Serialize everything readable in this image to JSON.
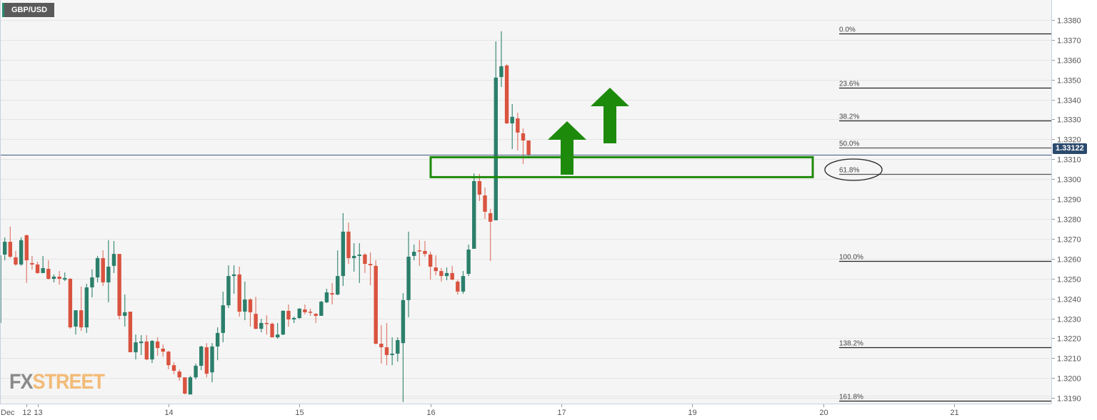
{
  "symbol": "GBP/USD",
  "logo": {
    "part1": "FX",
    "part2": "STREET"
  },
  "current_price": "1.33122",
  "colors": {
    "up": "#2b7f6b",
    "down": "#d9533f",
    "annotation": "#1e8a0c",
    "price_line": "#3d5a80",
    "price_tag": "#2c4a6e",
    "background": "#f5f5f5"
  },
  "chart_data": {
    "type": "candlestick",
    "title": "GBP/USD",
    "xlabel": "",
    "ylabel": "",
    "ylim": [
      1.31872,
      1.339
    ],
    "y_ticks": [
      "1.3190",
      "1.3200",
      "1.3210",
      "1.3220",
      "1.3230",
      "1.3240",
      "1.3250",
      "1.3260",
      "1.3270",
      "1.3280",
      "1.3290",
      "1.3300",
      "1.3310",
      "1.3320",
      "1.3330",
      "1.3340",
      "1.3350",
      "1.3360",
      "1.3370",
      "1.3380"
    ],
    "x_ticks": [
      {
        "label": "Dec",
        "at": 0
      },
      {
        "label": "12",
        "at": 5
      },
      {
        "label": "13",
        "at": 7
      },
      {
        "label": "14",
        "at": 31
      },
      {
        "label": "15",
        "at": 55
      },
      {
        "label": "16",
        "at": 79
      },
      {
        "label": "17",
        "at": 103
      },
      {
        "label": "19",
        "at": 127
      },
      {
        "label": "20",
        "at": 151
      },
      {
        "label": "21",
        "at": 175
      }
    ],
    "grid": true,
    "candles_ohlc": [
      [
        1.32277,
        1.32617,
        1.32277,
        1.32617
      ],
      [
        1.32621,
        1.32707,
        1.32592,
        1.32685
      ],
      [
        1.32685,
        1.32761,
        1.32603,
        1.3261
      ],
      [
        1.32607,
        1.32639,
        1.32564,
        1.32571
      ],
      [
        1.32571,
        1.32707,
        1.32564,
        1.32693
      ],
      [
        1.32718,
        1.32721,
        1.32478,
        1.32592
      ],
      [
        1.32578,
        1.32614,
        1.32546,
        1.32571
      ],
      [
        1.32571,
        1.32585,
        1.32524,
        1.32528
      ],
      [
        1.32528,
        1.32614,
        1.32528,
        1.32553
      ],
      [
        1.32549,
        1.32592,
        1.32495,
        1.32499
      ],
      [
        1.32499,
        1.32521,
        1.32481,
        1.3251
      ],
      [
        1.3251,
        1.32538,
        1.3247,
        1.32499
      ],
      [
        1.32495,
        1.32531,
        1.32488,
        1.32503
      ],
      [
        1.32499,
        1.32503,
        1.32248,
        1.32255
      ],
      [
        1.32259,
        1.32341,
        1.32219,
        1.32341
      ],
      [
        1.32341,
        1.3246,
        1.32237,
        1.32255
      ],
      [
        1.32255,
        1.32474,
        1.32227,
        1.32456
      ],
      [
        1.32456,
        1.32546,
        1.32406,
        1.32506
      ],
      [
        1.32506,
        1.32614,
        1.32481,
        1.32603
      ],
      [
        1.32603,
        1.32642,
        1.32463,
        1.32481
      ],
      [
        1.32481,
        1.32693,
        1.32381,
        1.3256
      ],
      [
        1.32564,
        1.32689,
        1.32528,
        1.32624
      ],
      [
        1.32624,
        1.32624,
        1.32295,
        1.32313
      ],
      [
        1.32313,
        1.3242,
        1.32259,
        1.32331
      ],
      [
        1.32334,
        1.32334,
        1.3213,
        1.3213
      ],
      [
        1.3213,
        1.32219,
        1.32094,
        1.3218
      ],
      [
        1.32176,
        1.32216,
        1.32116,
        1.32184
      ],
      [
        1.32184,
        1.32216,
        1.3209,
        1.32094
      ],
      [
        1.32094,
        1.32191,
        1.32076,
        1.32187
      ],
      [
        1.32184,
        1.32205,
        1.32112,
        1.32151
      ],
      [
        1.32148,
        1.32169,
        1.32108,
        1.32133
      ],
      [
        1.32133,
        1.32137,
        1.32044,
        1.32065
      ],
      [
        1.32065,
        1.3208,
        1.32019,
        1.32037
      ],
      [
        1.32033,
        1.32044,
        1.31987,
        1.32004
      ],
      [
        1.32004,
        1.32004,
        1.31918,
        1.31922
      ],
      [
        1.31918,
        1.32012,
        1.31918,
        1.32004
      ],
      [
        1.32004,
        1.32073,
        1.31994,
        1.32062
      ],
      [
        1.32062,
        1.32162,
        1.3204,
        1.32159
      ],
      [
        1.32155,
        1.32176,
        1.32004,
        1.32022
      ],
      [
        1.32029,
        1.32176,
        1.31979,
        1.32159
      ],
      [
        1.32159,
        1.32255,
        1.3209,
        1.32227
      ],
      [
        1.32227,
        1.32435,
        1.3218,
        1.32366
      ],
      [
        1.32366,
        1.32567,
        1.32352,
        1.32513
      ],
      [
        1.32513,
        1.32567,
        1.32424,
        1.32521
      ],
      [
        1.32521,
        1.3256,
        1.32309,
        1.32334
      ],
      [
        1.32334,
        1.32485,
        1.32291,
        1.32395
      ],
      [
        1.32395,
        1.32402,
        1.32259,
        1.32331
      ],
      [
        1.32323,
        1.32409,
        1.32245,
        1.32248
      ],
      [
        1.32248,
        1.32298,
        1.3223,
        1.32277
      ],
      [
        1.32277,
        1.32316,
        1.32219,
        1.32273
      ],
      [
        1.32273,
        1.3228,
        1.32205,
        1.32205
      ],
      [
        1.32205,
        1.32277,
        1.32198,
        1.32219
      ],
      [
        1.32219,
        1.32341,
        1.32216,
        1.32338
      ],
      [
        1.32338,
        1.3237,
        1.32259,
        1.32295
      ],
      [
        1.32295,
        1.32309,
        1.32277,
        1.32302
      ],
      [
        1.32302,
        1.32352,
        1.32298,
        1.32349
      ],
      [
        1.32345,
        1.3237,
        1.3232,
        1.32331
      ],
      [
        1.32334,
        1.32349,
        1.32313,
        1.32331
      ],
      [
        1.32323,
        1.32327,
        1.32277,
        1.32313
      ],
      [
        1.32313,
        1.32388,
        1.32313,
        1.32384
      ],
      [
        1.32381,
        1.32449,
        1.32377,
        1.32431
      ],
      [
        1.32427,
        1.32478,
        1.3237,
        1.3242
      ],
      [
        1.3242,
        1.32642,
        1.32417,
        1.32513
      ],
      [
        1.32513,
        1.32829,
        1.32463,
        1.32736
      ],
      [
        1.32736,
        1.32782,
        1.32574,
        1.32603
      ],
      [
        1.32603,
        1.32678,
        1.32535,
        1.32614
      ],
      [
        1.32614,
        1.32678,
        1.32478,
        1.32621
      ],
      [
        1.32621,
        1.32628,
        1.32528,
        1.32574
      ],
      [
        1.32574,
        1.32632,
        1.32467,
        1.32567
      ],
      [
        1.32564,
        1.32592,
        1.32169,
        1.32173
      ],
      [
        1.32173,
        1.32266,
        1.32073,
        1.32155
      ],
      [
        1.32155,
        1.32277,
        1.32065,
        1.32116
      ],
      [
        1.32116,
        1.32205,
        1.32065,
        1.32123
      ],
      [
        1.32123,
        1.32205,
        1.32083,
        1.32191
      ],
      [
        1.32176,
        1.32427,
        1.3188,
        1.32392
      ],
      [
        1.32392,
        1.32736,
        1.32306,
        1.3261
      ],
      [
        1.32614,
        1.32671,
        1.32592,
        1.32635
      ],
      [
        1.32642,
        1.32693,
        1.32564,
        1.32639
      ],
      [
        1.32639,
        1.32689,
        1.3261,
        1.32624
      ],
      [
        1.32621,
        1.32635,
        1.32495,
        1.3256
      ],
      [
        1.32556,
        1.32617,
        1.32517,
        1.32538
      ],
      [
        1.32538,
        1.32553,
        1.32485,
        1.32513
      ],
      [
        1.32513,
        1.32556,
        1.32492,
        1.32528
      ],
      [
        1.32528,
        1.32564,
        1.32492,
        1.32495
      ],
      [
        1.32485,
        1.32495,
        1.3242,
        1.32435
      ],
      [
        1.32435,
        1.32538,
        1.32424,
        1.32513
      ],
      [
        1.32524,
        1.32671,
        1.32513,
        1.32646
      ],
      [
        1.3265,
        1.33029,
        1.3265,
        1.3299
      ],
      [
        1.3299,
        1.33026,
        1.3289,
        1.32922
      ],
      [
        1.32918,
        1.32958,
        1.328,
        1.32836
      ],
      [
        1.32829,
        1.3285,
        1.32589,
        1.32786
      ],
      [
        1.32793,
        1.33692,
        1.32793,
        1.3351
      ],
      [
        1.33513,
        1.33743,
        1.33463,
        1.33567
      ],
      [
        1.33571,
        1.33578,
        1.33277,
        1.3328
      ],
      [
        1.3328,
        1.33377,
        1.33151,
        1.33313
      ],
      [
        1.33305,
        1.33334,
        1.33144,
        1.33234
      ],
      [
        1.3323,
        1.33255,
        1.33076,
        1.33194
      ],
      [
        1.33194,
        1.33194,
        1.33105,
        1.33123
      ]
    ],
    "fibonacci": [
      {
        "label": "0.0%",
        "price": 1.3373
      },
      {
        "label": "23.6%",
        "price": 1.33461
      },
      {
        "label": "38.2%",
        "price": 1.33295
      },
      {
        "label": "50.0%",
        "price": 1.3316
      },
      {
        "label": "61.8%",
        "price": 1.33025
      },
      {
        "label": "100.0%",
        "price": 1.3259
      },
      {
        "label": "138.2%",
        "price": 1.32155
      },
      {
        "label": "161.8%",
        "price": 1.31885
      }
    ],
    "current_price": 1.33122,
    "support_zone": [
      1.3301,
      1.3311
    ]
  }
}
